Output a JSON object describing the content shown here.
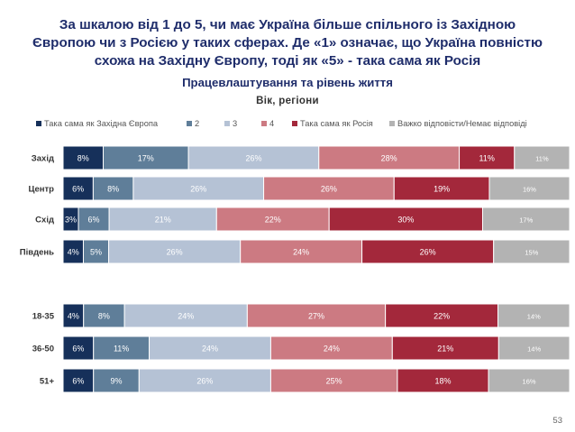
{
  "title": {
    "line1": "За шкалою від 1 до 5, чи має Україна більше спільного із Західною",
    "line2": "Європою чи з Росією у таких сферах. Де «1» означає, що Україна повністю",
    "line3": "схожа на Західну Європу, тоді як «5» - така сама як Росія"
  },
  "subtitle": "Працевлаштування та рівень життя",
  "subsubtitle": "Вік, регіони",
  "page_number": "53",
  "chart_data": {
    "type": "bar",
    "orientation": "horizontal",
    "stacked": true,
    "percent_scale": true,
    "title": "Працевлаштування та рівень життя",
    "categories": [
      "Захід",
      "Центр",
      "Схід",
      "Південь",
      "18-35",
      "36-50",
      "51+"
    ],
    "groups": [
      [
        "Захід",
        "Центр",
        "Схід",
        "Південь"
      ],
      [
        "18-35",
        "36-50",
        "51+"
      ]
    ],
    "legend_position": "top",
    "series": [
      {
        "name": "Така сама як Західна Європа",
        "color": "#16305a",
        "values": [
          8,
          6,
          3,
          4,
          4,
          6,
          6
        ],
        "labels": [
          "8%",
          "6%",
          "3%",
          "4%",
          "4%",
          "6%",
          "6%"
        ]
      },
      {
        "name": "2",
        "color": "#5f7e99",
        "values": [
          17,
          8,
          6,
          5,
          8,
          11,
          9
        ],
        "labels": [
          "17%",
          "8%",
          "6%",
          "5%",
          "8%",
          "11%",
          "9%"
        ]
      },
      {
        "name": "3",
        "color": "#b5c2d5",
        "values": [
          26,
          26,
          21,
          26,
          24,
          24,
          26
        ],
        "labels": [
          "26%",
          "26%",
          "21%",
          "26%",
          "24%",
          "24%",
          "26%"
        ]
      },
      {
        "name": "4",
        "color": "#cc7a82",
        "values": [
          28,
          26,
          22,
          24,
          27,
          24,
          25
        ],
        "labels": [
          "28%",
          "26%",
          "22%",
          "24%",
          "27%",
          "24%",
          "25%"
        ]
      },
      {
        "name": "Така сама як Росія",
        "color": "#a3283b",
        "values": [
          11,
          19,
          30,
          26,
          22,
          21,
          18
        ],
        "labels": [
          "11%",
          "19%",
          "30%",
          "26%",
          "22%",
          "21%",
          "18%"
        ]
      },
      {
        "name": "Важко відповісти/Немає відповіді",
        "color": "#b3b3b3",
        "values": [
          11,
          16,
          17,
          15,
          14,
          14,
          16
        ],
        "labels": [
          "11%",
          "16%",
          "17%",
          "15%",
          "14%",
          "14%",
          "16%"
        ]
      }
    ]
  }
}
